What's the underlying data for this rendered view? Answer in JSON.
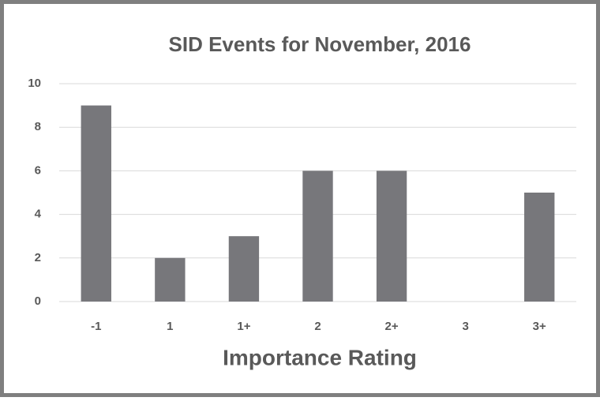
{
  "chart_data": {
    "type": "bar",
    "title": "SID Events for November, 2016",
    "x_label": "Importance Rating",
    "categories": [
      "-1",
      "1",
      "1+",
      "2",
      "2+",
      "3",
      "3+"
    ],
    "values": [
      9,
      2,
      3,
      6,
      6,
      0,
      5
    ],
    "color": "#77777b",
    "ylim": [
      0,
      10
    ],
    "yticks": [
      0,
      2,
      4,
      6,
      8,
      10
    ],
    "grid": true
  }
}
